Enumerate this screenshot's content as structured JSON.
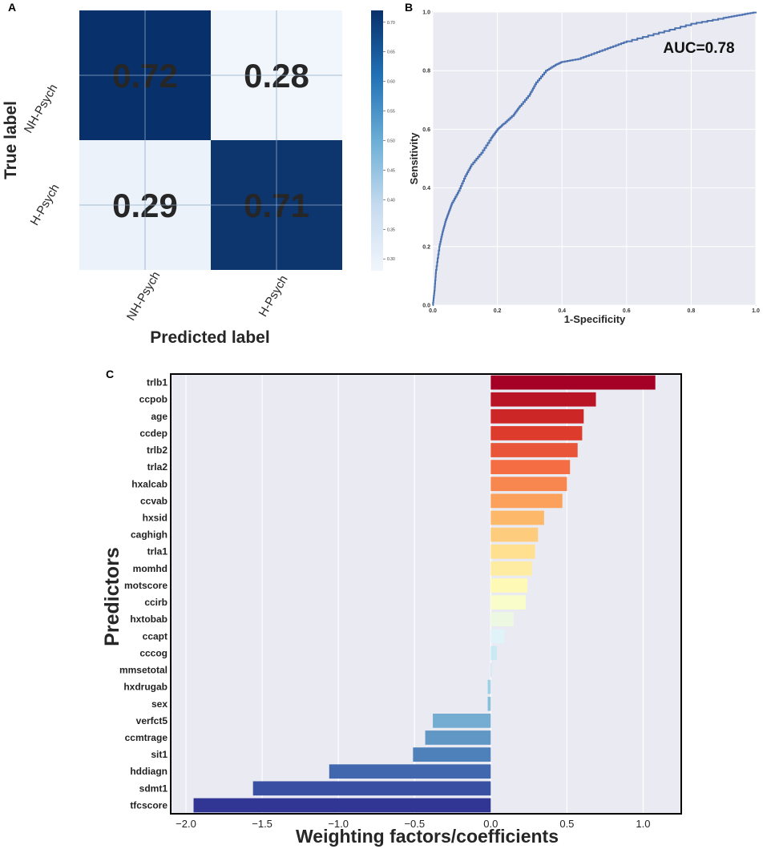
{
  "panels": {
    "a": "A",
    "b": "B",
    "c": "C"
  },
  "colors": {
    "dark_blue": "#08306b",
    "light_blue": "#f1f6fc",
    "roc_line": "#4c72b0",
    "plot_bg": "#eaeaf2"
  },
  "chart_data": [
    {
      "id": "confusion-matrix",
      "type": "heatmap",
      "title": "",
      "xlabel": "Predicted label",
      "ylabel": "True label",
      "x_categories": [
        "NH-Psych",
        "H-Psych"
      ],
      "y_categories": [
        "NH-Psych",
        "H-Psych"
      ],
      "matrix": [
        [
          0.72,
          0.28
        ],
        [
          0.29,
          0.71
        ]
      ],
      "colorbar": {
        "ticks": [
          "0.70",
          "0.65",
          "0.60",
          "0.55",
          "0.50",
          "0.45",
          "0.40",
          "0.35",
          "0.30"
        ],
        "tick_values": [
          0.7,
          0.65,
          0.6,
          0.55,
          0.5,
          0.45,
          0.4,
          0.35,
          0.3
        ],
        "range": [
          0.28,
          0.72
        ]
      }
    },
    {
      "id": "roc-curve",
      "type": "line",
      "title": "",
      "xlabel": "1-Specificity",
      "ylabel": "Sensitivity",
      "annotation": "AUC=0.78",
      "xlim": [
        0,
        1
      ],
      "ylim": [
        0,
        1
      ],
      "xticks": [
        "0.0",
        "0.2",
        "0.4",
        "0.6",
        "0.8",
        "1.0"
      ],
      "yticks": [
        "0.0",
        "0.2",
        "0.4",
        "0.6",
        "0.8",
        "1.0"
      ],
      "x": [
        0,
        0.005,
        0.01,
        0.02,
        0.03,
        0.04,
        0.05,
        0.06,
        0.08,
        0.1,
        0.12,
        0.15,
        0.18,
        0.2,
        0.22,
        0.25,
        0.27,
        0.3,
        0.32,
        0.35,
        0.38,
        0.4,
        0.45,
        0.5,
        0.55,
        0.6,
        0.7,
        0.8,
        0.9,
        0.95,
        1.0
      ],
      "y": [
        0,
        0.05,
        0.12,
        0.2,
        0.25,
        0.29,
        0.32,
        0.35,
        0.39,
        0.44,
        0.48,
        0.52,
        0.57,
        0.6,
        0.62,
        0.65,
        0.68,
        0.72,
        0.76,
        0.8,
        0.82,
        0.83,
        0.84,
        0.86,
        0.88,
        0.9,
        0.93,
        0.96,
        0.98,
        0.99,
        1.0
      ]
    },
    {
      "id": "coefficients",
      "type": "bar",
      "orientation": "horizontal",
      "title": "",
      "xlabel": "Weighting factors/coefficients",
      "ylabel": "Predictors",
      "xlim": [
        -2.1,
        1.25
      ],
      "xticks": [
        "−2.0",
        "−1.5",
        "−1.0",
        "−0.5",
        "0.0",
        "0.5",
        "1.0"
      ],
      "xtick_values": [
        -2.0,
        -1.5,
        -1.0,
        -0.5,
        0.0,
        0.5,
        1.0
      ],
      "categories": [
        "trlb1",
        "ccpob",
        "age",
        "ccdep",
        "trlb2",
        "trla2",
        "hxalcab",
        "ccvab",
        "hxsid",
        "caghigh",
        "trla1",
        "momhd",
        "motscore",
        "ccirb",
        "hxtobab",
        "ccapt",
        "cccog",
        "mmsetotal",
        "hxdrugab",
        "sex",
        "verfct5",
        "ccmtrage",
        "sit1",
        "hddiagn",
        "sdmt1",
        "tfcscore"
      ],
      "values": [
        1.08,
        0.69,
        0.61,
        0.6,
        0.57,
        0.52,
        0.5,
        0.47,
        0.35,
        0.31,
        0.29,
        0.27,
        0.24,
        0.23,
        0.15,
        0.09,
        0.04,
        0.0,
        -0.02,
        -0.02,
        -0.38,
        -0.43,
        -0.51,
        -1.06,
        -1.56,
        -1.95
      ]
    }
  ]
}
